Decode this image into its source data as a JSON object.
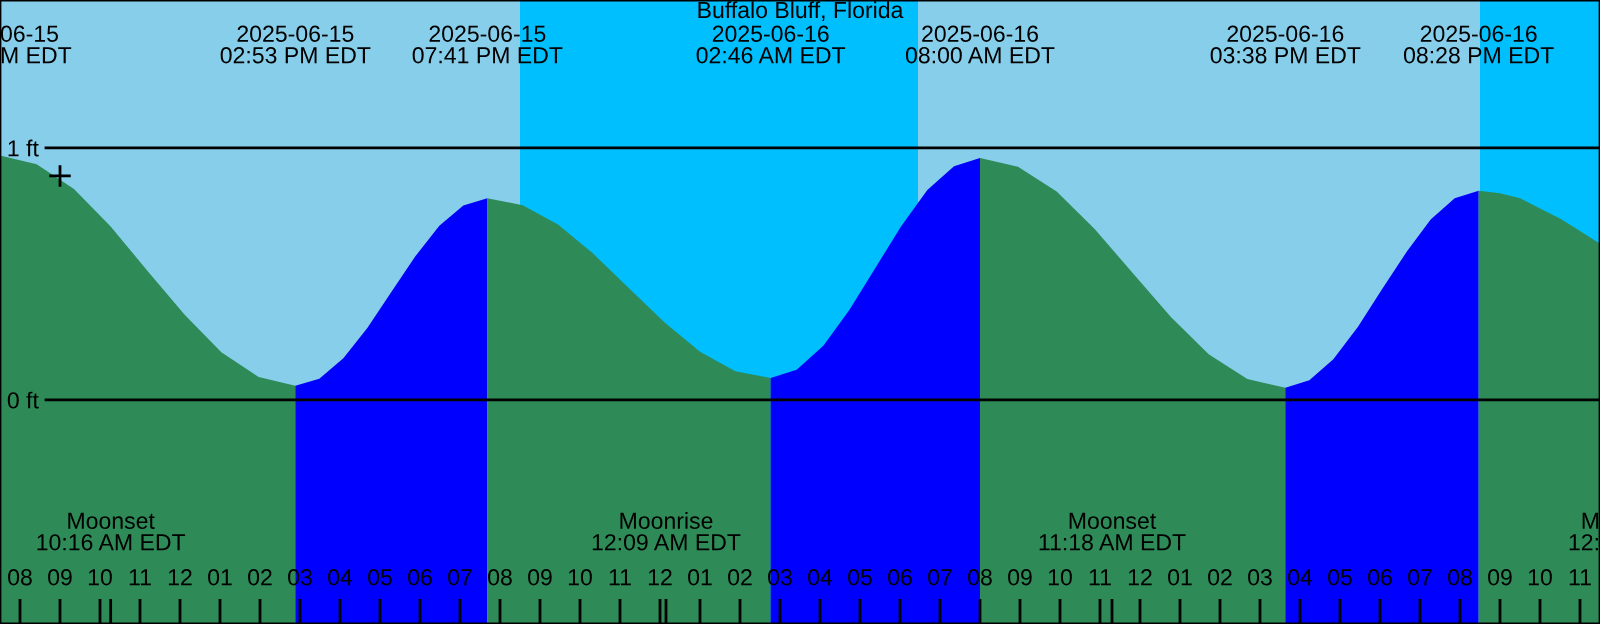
{
  "chart_data": {
    "type": "area",
    "title": "Buffalo Bluff, Florida",
    "xlim": [
      "2025-06-15T07:30",
      "2025-06-16T23:30"
    ],
    "ylim": [
      -0.889,
      1.587
    ],
    "xticks": [
      {
        "value": "2025-06-15T08:00",
        "label": "08"
      },
      {
        "value": "2025-06-15T09:00",
        "label": "09"
      },
      {
        "value": "2025-06-15T10:00",
        "label": "10"
      },
      {
        "value": "2025-06-15T11:00",
        "label": "11"
      },
      {
        "value": "2025-06-15T12:00",
        "label": "12"
      },
      {
        "value": "2025-06-15T13:00",
        "label": "01"
      },
      {
        "value": "2025-06-15T14:00",
        "label": "02"
      },
      {
        "value": "2025-06-15T15:00",
        "label": "03"
      },
      {
        "value": "2025-06-15T16:00",
        "label": "04"
      },
      {
        "value": "2025-06-15T17:00",
        "label": "05"
      },
      {
        "value": "2025-06-15T18:00",
        "label": "06"
      },
      {
        "value": "2025-06-15T19:00",
        "label": "07"
      },
      {
        "value": "2025-06-15T20:00",
        "label": "08"
      },
      {
        "value": "2025-06-15T21:00",
        "label": "09"
      },
      {
        "value": "2025-06-15T22:00",
        "label": "10"
      },
      {
        "value": "2025-06-15T23:00",
        "label": "11"
      },
      {
        "value": "2025-06-16T00:00",
        "label": "12"
      },
      {
        "value": "2025-06-16T01:00",
        "label": "01"
      },
      {
        "value": "2025-06-16T02:00",
        "label": "02"
      },
      {
        "value": "2025-06-16T03:00",
        "label": "03"
      },
      {
        "value": "2025-06-16T04:00",
        "label": "04"
      },
      {
        "value": "2025-06-16T05:00",
        "label": "05"
      },
      {
        "value": "2025-06-16T06:00",
        "label": "06"
      },
      {
        "value": "2025-06-16T07:00",
        "label": "07"
      },
      {
        "value": "2025-06-16T08:00",
        "label": "08"
      },
      {
        "value": "2025-06-16T09:00",
        "label": "09"
      },
      {
        "value": "2025-06-16T10:00",
        "label": "10"
      },
      {
        "value": "2025-06-16T11:00",
        "label": "11"
      },
      {
        "value": "2025-06-16T12:00",
        "label": "12"
      },
      {
        "value": "2025-06-16T13:00",
        "label": "01"
      },
      {
        "value": "2025-06-16T14:00",
        "label": "02"
      },
      {
        "value": "2025-06-16T15:00",
        "label": "03"
      },
      {
        "value": "2025-06-16T16:00",
        "label": "04"
      },
      {
        "value": "2025-06-16T17:00",
        "label": "05"
      },
      {
        "value": "2025-06-16T18:00",
        "label": "06"
      },
      {
        "value": "2025-06-16T19:00",
        "label": "07"
      },
      {
        "value": "2025-06-16T20:00",
        "label": "08"
      },
      {
        "value": "2025-06-16T21:00",
        "label": "09"
      },
      {
        "value": "2025-06-16T22:00",
        "label": "10"
      },
      {
        "value": "2025-06-16T23:00",
        "label": "11"
      },
      {
        "value": "2025-06-15T10:16",
        "label": null
      },
      {
        "value": "2025-06-16T00:09",
        "label": null
      },
      {
        "value": "2025-06-16T11:18",
        "label": null
      }
    ],
    "yticks": [
      {
        "value": 0,
        "label": "0 ft"
      },
      {
        "value": 1,
        "label": "1 ft"
      }
    ],
    "grid": "y",
    "bands": [
      {
        "axis": "x",
        "from": "2025-06-15T07:30",
        "to": "2025-06-15T20:30",
        "color": "#87ceeb"
      },
      {
        "axis": "x",
        "from": "2025-06-15T20:30",
        "to": "2025-06-16T06:27",
        "color": "#00bfff"
      },
      {
        "axis": "x",
        "from": "2025-06-16T06:27",
        "to": "2025-06-16T20:30",
        "color": "#87ceeb"
      },
      {
        "axis": "x",
        "from": "2025-06-16T20:30",
        "to": "2025-06-16T23:30",
        "color": "#00bfff"
      },
      {
        "axis": "x",
        "from": "2025-06-15T07:30",
        "to": "2025-06-15T14:53",
        "color": "#2e8b57"
      },
      {
        "axis": "x",
        "from": "2025-06-15T14:53",
        "to": "2025-06-15T19:41",
        "color": "#0000ff"
      },
      {
        "axis": "x",
        "from": "2025-06-15T19:41",
        "to": "2025-06-16T02:46",
        "color": "#2e8b57"
      },
      {
        "axis": "x",
        "from": "2025-06-16T02:46",
        "to": "2025-06-16T08:00",
        "color": "#0000ff"
      },
      {
        "axis": "x",
        "from": "2025-06-16T08:00",
        "to": "2025-06-16T15:38",
        "color": "#2e8b57"
      },
      {
        "axis": "x",
        "from": "2025-06-16T15:38",
        "to": "2025-06-16T20:28",
        "color": "#0000ff"
      },
      {
        "axis": "x",
        "from": "2025-06-16T20:28",
        "to": "2025-06-16T23:30",
        "color": "#2e8b57"
      }
    ],
    "series": [
      {
        "color": "#2e8b57",
        "x": [
          "2025-06-15T07:30",
          "2025-06-15T08:25",
          "2025-06-15T09:21",
          "2025-06-15T10:16",
          "2025-06-15T11:11",
          "2025-06-15T12:07",
          "2025-06-15T13:02",
          "2025-06-15T13:58",
          "2025-06-15T14:53"
        ],
        "values": [
          0.97,
          0.935,
          0.837,
          0.688,
          0.513,
          0.338,
          0.189,
          0.091,
          0.056
        ]
      },
      {
        "color": "#0000ff",
        "x": [
          "2025-06-15T14:53",
          "2025-06-15T15:29",
          "2025-06-15T16:05",
          "2025-06-15T16:41",
          "2025-06-15T17:17",
          "2025-06-15T17:53",
          "2025-06-15T18:29",
          "2025-06-15T19:05",
          "2025-06-15T19:41"
        ],
        "values": [
          0.056,
          0.084,
          0.165,
          0.286,
          0.428,
          0.57,
          0.691,
          0.772,
          0.8
        ]
      },
      {
        "color": "#2e8b57",
        "x": [
          "2025-06-15T19:41",
          "2025-06-15T20:34",
          "2025-06-15T21:27",
          "2025-06-15T22:20",
          "2025-06-15T23:13",
          "2025-06-16T00:07",
          "2025-06-16T01:00",
          "2025-06-16T01:53",
          "2025-06-16T02:46"
        ],
        "values": [
          0.8,
          0.773,
          0.696,
          0.58,
          0.444,
          0.307,
          0.191,
          0.114,
          0.087
        ]
      },
      {
        "color": "#0000ff",
        "x": [
          "2025-06-16T02:46",
          "2025-06-16T03:25",
          "2025-06-16T04:05",
          "2025-06-16T04:44",
          "2025-06-16T05:23",
          "2025-06-16T06:02",
          "2025-06-16T06:41",
          "2025-06-16T07:21",
          "2025-06-16T08:00"
        ],
        "values": [
          0.087,
          0.12,
          0.215,
          0.357,
          0.524,
          0.69,
          0.833,
          0.927,
          0.96
        ]
      },
      {
        "color": "#2e8b57",
        "x": [
          "2025-06-16T08:00",
          "2025-06-16T08:57",
          "2025-06-16T09:55",
          "2025-06-16T10:52",
          "2025-06-16T11:49",
          "2025-06-16T12:46",
          "2025-06-16T13:43",
          "2025-06-16T14:41",
          "2025-06-16T15:38"
        ],
        "values": [
          0.96,
          0.925,
          0.827,
          0.678,
          0.504,
          0.33,
          0.181,
          0.083,
          0.048
        ]
      },
      {
        "color": "#0000ff",
        "x": [
          "2025-06-16T15:38",
          "2025-06-16T16:14",
          "2025-06-16T16:50",
          "2025-06-16T17:27",
          "2025-06-16T18:03",
          "2025-06-16T18:40",
          "2025-06-16T19:16",
          "2025-06-16T19:52",
          "2025-06-16T20:28"
        ],
        "values": [
          0.048,
          0.078,
          0.162,
          0.29,
          0.439,
          0.588,
          0.716,
          0.8,
          0.83
        ]
      },
      {
        "color": "#2e8b57",
        "x": [
          "2025-06-16T20:28",
          "2025-06-16T21:00",
          "2025-06-16T21:30",
          "2025-06-16T22:00",
          "2025-06-16T22:30",
          "2025-06-16T23:00",
          "2025-06-16T23:30"
        ],
        "values": [
          0.83,
          0.82,
          0.8,
          0.76,
          0.72,
          0.67,
          0.62
        ]
      },
      {
        "type": "scatter",
        "color": "#000000",
        "marker": "cross",
        "x": [
          "2025-06-15T09:00"
        ],
        "values": [
          0.889
        ]
      }
    ],
    "annotations": [
      "06-15\nM EDT",
      "2025-06-15\n02:53 PM EDT",
      "2025-06-15\n07:41 PM EDT",
      "2025-06-16\n02:46 AM EDT",
      "2025-06-16\n08:00 AM EDT",
      "2025-06-16\n03:38 PM EDT",
      "2025-06-16\n08:28 PM EDT",
      "Moonset\n10:16 AM EDT",
      "Moonrise\n12:09 AM EDT",
      "Moonset\n11:18 AM EDT",
      "M\n12:"
    ]
  }
}
